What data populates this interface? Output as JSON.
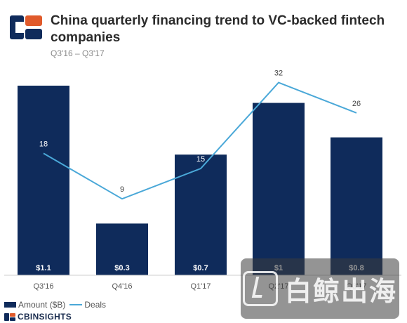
{
  "header": {
    "title": "China quarterly financing trend to VC-backed fintech companies",
    "subtitle": "Q3'16 – Q3'17"
  },
  "legend": {
    "amount_label": "Amount ($B)",
    "deals_label": "Deals"
  },
  "footer": {
    "brand": "CBINSIGHTS"
  },
  "watermark": {
    "text": "白鲸出海"
  },
  "colors": {
    "bar": "#0f2b5b",
    "line": "#4aa8d8",
    "accent": "#e05a2b"
  },
  "chart_data": {
    "type": "bar",
    "categories": [
      "Q3'16",
      "Q4'16",
      "Q1'17",
      "Q2'17",
      "Q3'17"
    ],
    "series": [
      {
        "name": "Amount ($B)",
        "type": "bar",
        "values": [
          1.1,
          0.3,
          0.7,
          1.0,
          0.8
        ],
        "labels": [
          "$1.1",
          "$0.3",
          "$0.7",
          "$1",
          "$0.8"
        ]
      },
      {
        "name": "Deals",
        "type": "line",
        "values": [
          18,
          9,
          15,
          32,
          26
        ],
        "labels": [
          "18",
          "9",
          "15",
          "32",
          "26"
        ]
      }
    ],
    "legend_position": "bottom-left",
    "grid": false
  }
}
